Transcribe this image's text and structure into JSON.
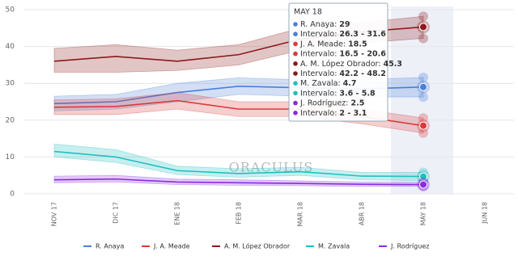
{
  "chart_data": {
    "type": "line",
    "watermark": "ORACULUS",
    "categories": [
      "NOV 17",
      "DIC 17",
      "ENE 18",
      "FEB 18",
      "MAR 18",
      "ABR 18",
      "MAY 18",
      "JUN 18"
    ],
    "ylim": [
      0,
      50
    ],
    "yticks": [
      0,
      10,
      20,
      30,
      40,
      50
    ],
    "grid": true,
    "series": [
      {
        "name": "R. Anaya",
        "color": "#4a7fd9",
        "values": [
          24.5,
          25,
          27.5,
          29.2,
          28.8,
          28.5,
          29,
          null
        ],
        "low": [
          22.5,
          23,
          25,
          27,
          26.5,
          26.3,
          26.3,
          null
        ],
        "high": [
          26.5,
          27,
          30,
          31.5,
          31,
          31,
          31.6,
          null
        ]
      },
      {
        "name": "J. A. Meade",
        "color": "#d93a3a",
        "values": [
          23.5,
          23.7,
          25.3,
          23,
          23,
          21,
          18.5,
          null
        ],
        "low": [
          21.5,
          21.5,
          23,
          21,
          21,
          19,
          16.5,
          null
        ],
        "high": [
          25.5,
          25.8,
          27.5,
          25,
          25,
          23,
          20.6,
          null
        ]
      },
      {
        "name": "A. M. López Obrador",
        "color": "#8b1a1a",
        "values": [
          36,
          37.3,
          36,
          37.8,
          42,
          44,
          45.3,
          null
        ],
        "low": [
          33,
          33,
          33.5,
          35,
          39,
          41,
          42.2,
          null
        ],
        "high": [
          39.5,
          40.5,
          39,
          40.5,
          45,
          46.5,
          48.2,
          null
        ]
      },
      {
        "name": "M. Zavala",
        "color": "#20c0c0",
        "values": [
          11.5,
          10,
          6.3,
          5.5,
          6,
          4.8,
          4.7,
          null
        ],
        "low": [
          10,
          8.5,
          5.2,
          4.5,
          5,
          3.8,
          3.6,
          null
        ],
        "high": [
          13.5,
          12,
          7.5,
          6.8,
          7.2,
          5.8,
          5.8,
          null
        ]
      },
      {
        "name": "J. Rodríguez",
        "color": "#8a2be2",
        "values": [
          3.8,
          4,
          3.2,
          3,
          2.8,
          2.6,
          2.5,
          null
        ],
        "low": [
          3,
          3.2,
          2.5,
          2.3,
          2.2,
          2,
          2,
          null
        ],
        "high": [
          4.8,
          5,
          4,
          3.8,
          3.5,
          3.2,
          3.1,
          null
        ]
      }
    ],
    "tooltip": {
      "title": "MAY 18",
      "rows": [
        {
          "label": "R. Anaya:",
          "value": "29",
          "color": "#4a7fd9"
        },
        {
          "label": "Intervalo:",
          "value": "26.3 - 31.6",
          "color": "#4a7fd9"
        },
        {
          "label": "J. A. Meade:",
          "value": "18.5",
          "color": "#d93a3a"
        },
        {
          "label": "Intervalo:",
          "value": "16.5 - 20.6",
          "color": "#d93a3a"
        },
        {
          "label": "A. M. López Obrador:",
          "value": "45.3",
          "color": "#8b1a1a"
        },
        {
          "label": "Intervalo:",
          "value": "42.2 - 48.2",
          "color": "#8b1a1a"
        },
        {
          "label": "M. Zavala:",
          "value": "4.7",
          "color": "#20c0c0"
        },
        {
          "label": "Intervalo:",
          "value": "3.6 - 5.8",
          "color": "#20c0c0"
        },
        {
          "label": "J. Rodríguez:",
          "value": "2.5",
          "color": "#8a2be2"
        },
        {
          "label": "Intervalo:",
          "value": "2 - 3.1",
          "color": "#8a2be2"
        }
      ]
    }
  }
}
